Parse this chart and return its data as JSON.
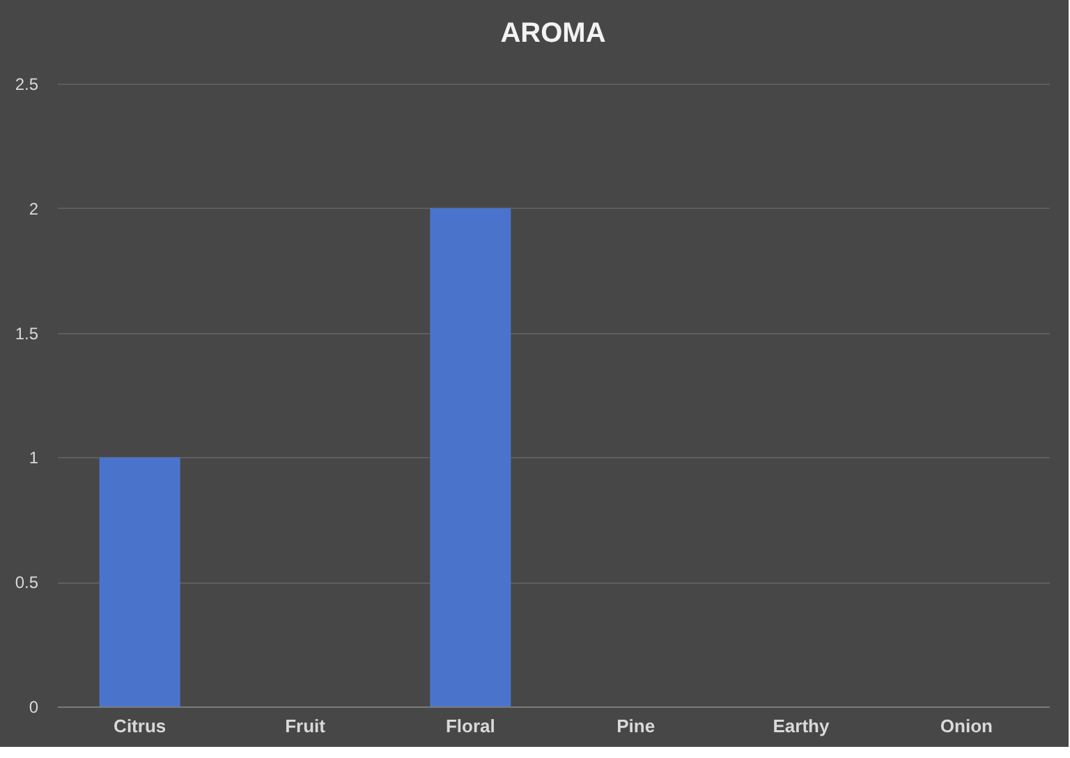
{
  "chart_data": {
    "type": "bar",
    "title": "AROMA",
    "categories": [
      "Citrus",
      "Fruit",
      "Floral",
      "Pine",
      "Earthy",
      "Onion"
    ],
    "values": [
      1,
      0,
      2,
      0,
      0,
      0
    ],
    "color": "#4a74cc",
    "ylim": [
      0,
      2.5
    ],
    "yticks": [
      0,
      0.5,
      1,
      1.5,
      2,
      2.5
    ],
    "grid": "y"
  }
}
